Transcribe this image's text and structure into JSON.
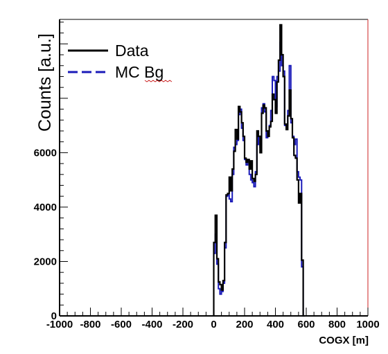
{
  "chart_data": {
    "type": "line",
    "title": "",
    "xlabel": "COGX [m]",
    "ylabel": "Counts  [a.u.]",
    "xlim": [
      -1000,
      1000
    ],
    "ylim": [
      0,
      10900
    ],
    "x_ticks": [
      -1000,
      -800,
      -600,
      -400,
      -200,
      0,
      200,
      400,
      600,
      800,
      1000
    ],
    "y_ticks": [
      0,
      2000,
      4000,
      6000
    ],
    "x_tick_labels": [
      "-1000",
      "-800",
      "-600",
      "-400",
      "-200",
      "0",
      "200",
      "400",
      "600",
      "800",
      "1000"
    ],
    "y_tick_labels": [
      "0",
      "2000",
      "4000",
      "6000"
    ],
    "legend_position": "top-left",
    "grid": false,
    "series": [
      {
        "name": "Data",
        "color": "#000000",
        "style": "solid",
        "bins": [
          [
            0,
            10,
            2700
          ],
          [
            10,
            20,
            3700
          ],
          [
            20,
            30,
            2100
          ],
          [
            30,
            40,
            1250
          ],
          [
            40,
            50,
            1150
          ],
          [
            50,
            60,
            950
          ],
          [
            60,
            70,
            1300
          ],
          [
            70,
            80,
            2700
          ],
          [
            80,
            90,
            4450
          ],
          [
            90,
            100,
            4500
          ],
          [
            100,
            110,
            5100
          ],
          [
            110,
            120,
            4600
          ],
          [
            120,
            130,
            5400
          ],
          [
            130,
            140,
            6050
          ],
          [
            140,
            150,
            6850
          ],
          [
            150,
            160,
            6500
          ],
          [
            160,
            170,
            7700
          ],
          [
            170,
            180,
            7500
          ],
          [
            180,
            190,
            7100
          ],
          [
            190,
            200,
            6600
          ],
          [
            200,
            210,
            5800
          ],
          [
            210,
            220,
            5650
          ],
          [
            220,
            230,
            5750
          ],
          [
            230,
            240,
            5400
          ],
          [
            240,
            250,
            5700
          ],
          [
            250,
            260,
            5050
          ],
          [
            260,
            270,
            4950
          ],
          [
            270,
            280,
            5200
          ],
          [
            280,
            290,
            6800
          ],
          [
            290,
            300,
            6600
          ],
          [
            300,
            310,
            6000
          ],
          [
            310,
            320,
            7450
          ],
          [
            320,
            330,
            7750
          ],
          [
            330,
            340,
            7650
          ],
          [
            340,
            350,
            6800
          ],
          [
            350,
            360,
            6600
          ],
          [
            360,
            370,
            6950
          ],
          [
            370,
            380,
            7150
          ],
          [
            380,
            390,
            8150
          ],
          [
            390,
            400,
            7950
          ],
          [
            400,
            410,
            7450
          ],
          [
            410,
            420,
            8600
          ],
          [
            420,
            430,
            9400
          ],
          [
            430,
            440,
            10700
          ],
          [
            440,
            450,
            9600
          ],
          [
            450,
            460,
            8800
          ],
          [
            460,
            470,
            7050
          ],
          [
            470,
            480,
            6850
          ],
          [
            480,
            490,
            7350
          ],
          [
            490,
            500,
            8300
          ],
          [
            500,
            510,
            7250
          ],
          [
            510,
            520,
            6550
          ],
          [
            520,
            530,
            5900
          ],
          [
            530,
            540,
            5800
          ],
          [
            540,
            550,
            5000
          ],
          [
            550,
            560,
            4150
          ],
          [
            560,
            570,
            4500
          ],
          [
            570,
            580,
            2050
          ],
          [
            580,
            590,
            0
          ]
        ]
      },
      {
        "name": "MC Bg",
        "color": "#1a1ab8",
        "style": "dashed",
        "bins": [
          [
            0,
            10,
            2300
          ],
          [
            10,
            20,
            3000
          ],
          [
            20,
            30,
            1900
          ],
          [
            30,
            40,
            1000
          ],
          [
            40,
            50,
            800
          ],
          [
            50,
            60,
            900
          ],
          [
            60,
            70,
            1200
          ],
          [
            70,
            80,
            2500
          ],
          [
            80,
            90,
            4400
          ],
          [
            90,
            100,
            4450
          ],
          [
            100,
            110,
            4300
          ],
          [
            110,
            120,
            4200
          ],
          [
            120,
            130,
            5200
          ],
          [
            130,
            140,
            6200
          ],
          [
            140,
            150,
            6300
          ],
          [
            150,
            160,
            6450
          ],
          [
            160,
            170,
            7400
          ],
          [
            170,
            180,
            7600
          ],
          [
            180,
            190,
            6900
          ],
          [
            190,
            200,
            6450
          ],
          [
            200,
            210,
            5750
          ],
          [
            210,
            220,
            5550
          ],
          [
            220,
            230,
            5700
          ],
          [
            230,
            240,
            5200
          ],
          [
            240,
            250,
            5000
          ],
          [
            250,
            260,
            4900
          ],
          [
            260,
            270,
            4750
          ],
          [
            270,
            280,
            5300
          ],
          [
            280,
            290,
            6300
          ],
          [
            290,
            300,
            6600
          ],
          [
            300,
            310,
            6200
          ],
          [
            310,
            320,
            7650
          ],
          [
            320,
            330,
            7800
          ],
          [
            330,
            340,
            7500
          ],
          [
            340,
            350,
            6550
          ],
          [
            350,
            360,
            6800
          ],
          [
            360,
            370,
            7000
          ],
          [
            370,
            380,
            7550
          ],
          [
            380,
            390,
            8800
          ],
          [
            390,
            400,
            8650
          ],
          [
            400,
            410,
            7700
          ],
          [
            410,
            420,
            8800
          ],
          [
            420,
            430,
            9000
          ],
          [
            430,
            440,
            10050
          ],
          [
            440,
            450,
            9200
          ],
          [
            450,
            460,
            9000
          ],
          [
            460,
            470,
            7000
          ],
          [
            470,
            480,
            7000
          ],
          [
            480,
            490,
            7550
          ],
          [
            490,
            500,
            9200
          ],
          [
            500,
            510,
            7100
          ],
          [
            510,
            520,
            6600
          ],
          [
            520,
            530,
            6300
          ],
          [
            530,
            540,
            6500
          ],
          [
            540,
            550,
            5300
          ],
          [
            550,
            560,
            5100
          ],
          [
            560,
            570,
            5000
          ],
          [
            570,
            580,
            1800
          ],
          [
            580,
            590,
            0
          ]
        ]
      }
    ]
  }
}
